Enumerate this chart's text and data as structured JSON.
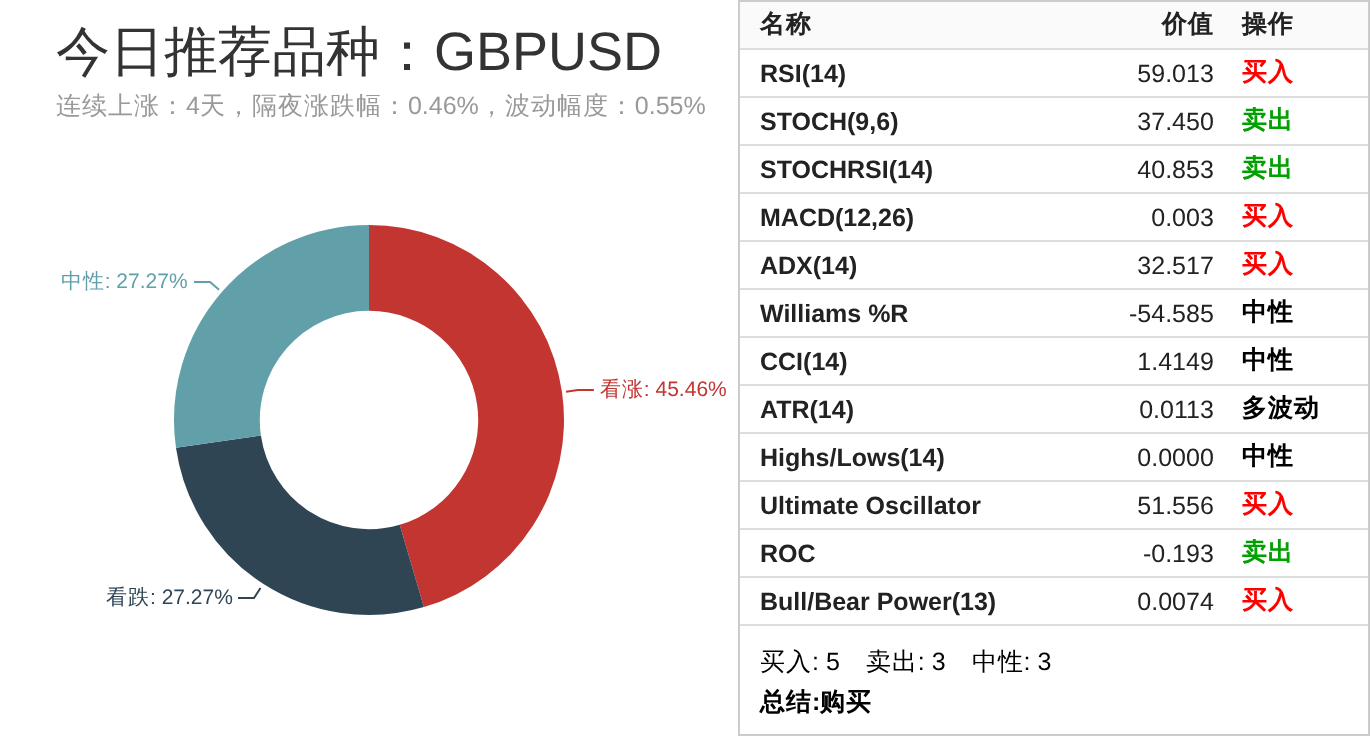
{
  "chart_data": [
    {
      "type": "donut",
      "title": "今日推荐品种：GBPUSD",
      "subtitle": "连续上涨：4天，隔夜涨跌幅：0.46%，波动幅度：0.55%",
      "categories": [
        "看涨",
        "看跌",
        "中性"
      ],
      "values": [
        45.46,
        27.27,
        27.27
      ],
      "colors": [
        "#c23531",
        "#2f4554",
        "#61a0a8"
      ],
      "value_labels": [
        ": 45.46%",
        ": 27.27%",
        ": 27.27%"
      ],
      "legend": false
    },
    {
      "type": "other",
      "xlabel": "名称",
      "categories": [
        "RSI(14)",
        "STOCH(9,6)",
        "STOCHRSI(14)",
        "MACD(12,26)",
        "ADX(14)",
        "Williams %R",
        "CCI(14)",
        "ATR(14)",
        "Highs/Lows(14)",
        "Ultimate Oscillator",
        "ROC",
        "Bull/Bear Power(13)"
      ],
      "series": [
        {
          "name": "价值",
          "values": [
            59.013,
            37.45,
            40.853,
            0.003,
            32.517,
            -54.585,
            1.4149,
            0.0113,
            0.0,
            51.556,
            -0.193,
            0.0074
          ],
          "value_labels": [
            "59.013",
            "37.450",
            "40.853",
            "0.003",
            "32.517",
            "-54.585",
            "1.4149",
            "0.0113",
            "0.0000",
            "51.556",
            "-0.193",
            "0.0074"
          ]
        },
        {
          "name": "操作",
          "values": [
            null,
            null,
            null,
            null,
            null,
            null,
            null,
            null,
            null,
            null,
            null,
            null
          ],
          "value_labels": [
            "买入",
            "卖出",
            "卖出",
            "买入",
            "买入",
            "中性",
            "中性",
            "多波动",
            "中性",
            "买入",
            "卖出",
            "买入"
          ],
          "colors": [
            "#ff0000",
            "#00a000",
            "#00a000",
            "#ff0000",
            "#ff0000",
            "#000000",
            "#000000",
            "#000000",
            "#000000",
            "#ff0000",
            "#00a000",
            "#ff0000"
          ]
        }
      ],
      "annotations": [
        "买入: 5",
        "卖出: 3",
        "中性: 3",
        "总结:购买"
      ]
    }
  ]
}
